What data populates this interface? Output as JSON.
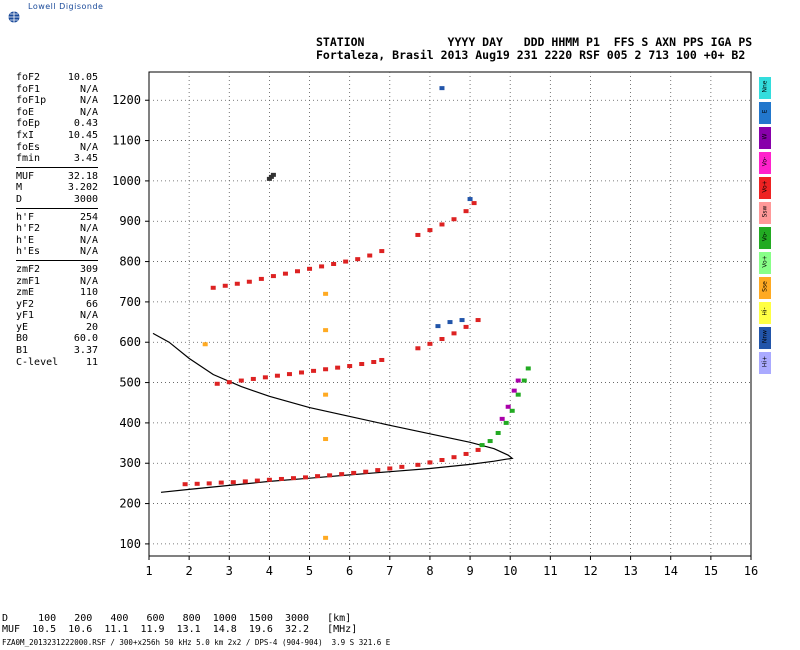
{
  "app": {
    "logo_text": "Lowell Digisonde"
  },
  "header": {
    "line1": "STATION            YYYY DAY   DDD HHMM P1  FFS S AXN PPS IGA PS",
    "line2": "Fortaleza, Brasil 2013 Aug19 231 2220 RSF 005 2 713 100 +0+ B2"
  },
  "params": {
    "group1": [
      {
        "k": "foF2",
        "v": "10.05"
      },
      {
        "k": "foF1",
        "v": "N/A"
      },
      {
        "k": "foF1p",
        "v": "N/A"
      },
      {
        "k": "foE",
        "v": "N/A"
      },
      {
        "k": "foEp",
        "v": "0.43"
      },
      {
        "k": "fxI",
        "v": "10.45"
      },
      {
        "k": "foEs",
        "v": "N/A"
      },
      {
        "k": "fmin",
        "v": "3.45"
      }
    ],
    "group2": [
      {
        "k": "MUF",
        "v": "32.18"
      },
      {
        "k": "M",
        "v": "3.202"
      },
      {
        "k": "D",
        "v": "3000"
      }
    ],
    "group3": [
      {
        "k": "h'F",
        "v": "254"
      },
      {
        "k": "h'F2",
        "v": "N/A"
      },
      {
        "k": "h'E",
        "v": "N/A"
      },
      {
        "k": "h'Es",
        "v": "N/A"
      }
    ],
    "group4": [
      {
        "k": "zmF2",
        "v": "309"
      },
      {
        "k": "zmF1",
        "v": "N/A"
      },
      {
        "k": "zmE",
        "v": "110"
      },
      {
        "k": "yF2",
        "v": "66"
      },
      {
        "k": "yF1",
        "v": "N/A"
      },
      {
        "k": "yE",
        "v": "20"
      },
      {
        "k": "B0",
        "v": "60.0"
      },
      {
        "k": "B1",
        "v": "3.37"
      },
      {
        "k": "C-level",
        "v": "11"
      }
    ]
  },
  "legend": [
    {
      "label": "Nne",
      "color": "#33dddd"
    },
    {
      "label": "E",
      "color": "#2277cc"
    },
    {
      "label": "W",
      "color": "#8800aa"
    },
    {
      "label": "Vo-",
      "color": "#ff22cc"
    },
    {
      "label": "Vo+",
      "color": "#ee2222"
    },
    {
      "label": "Ssw",
      "color": "#ff9999"
    },
    {
      "label": "Vo-",
      "color": "#22aa22"
    },
    {
      "label": "Vo+",
      "color": "#88ff88"
    },
    {
      "label": "Sse",
      "color": "#ffaa22"
    },
    {
      "label": "Hi-",
      "color": "#ffff44"
    },
    {
      "label": "Nnw",
      "color": "#2255aa"
    },
    {
      "label": "Hi+",
      "color": "#aaaaff"
    }
  ],
  "footer": {
    "line_d": "D     100   200   400   600   800  1000  1500  3000   [km]",
    "line_muf": "MUF  10.5  10.6  11.1  11.9  13.1  14.8  19.6  32.2   [MHz]",
    "filename": "FZA0M_2013231222000.RSF / 300+x256h 50 kHz 5.0 km 2x2 / DPS-4 (904-904)  3.9 S 321.6 E"
  },
  "chart_data": {
    "type": "scatter",
    "xlim": [
      1,
      16
    ],
    "ylim": [
      70,
      1270
    ],
    "x_ticks": [
      1,
      2,
      3,
      4,
      5,
      6,
      7,
      8,
      9,
      10,
      11,
      12,
      13,
      14,
      15,
      16
    ],
    "y_ticks": [
      100,
      200,
      300,
      400,
      500,
      600,
      700,
      800,
      900,
      1000,
      1100,
      1200
    ],
    "grid": "dotted",
    "series": [
      {
        "color": "#dd2222",
        "points": [
          [
            1.9,
            248
          ],
          [
            2.2,
            249
          ],
          [
            2.5,
            250
          ],
          [
            2.8,
            252
          ],
          [
            3.1,
            253
          ],
          [
            3.4,
            255
          ],
          [
            3.7,
            257
          ],
          [
            4.0,
            259
          ],
          [
            4.3,
            261
          ],
          [
            4.6,
            263
          ],
          [
            4.9,
            265
          ],
          [
            5.2,
            268
          ],
          [
            5.5,
            270
          ],
          [
            5.8,
            273
          ],
          [
            6.1,
            276
          ],
          [
            6.4,
            279
          ],
          [
            6.7,
            283
          ],
          [
            7.0,
            287
          ],
          [
            7.3,
            291
          ],
          [
            7.7,
            296
          ],
          [
            8.0,
            302
          ],
          [
            8.3,
            308
          ],
          [
            8.6,
            315
          ],
          [
            8.9,
            323
          ],
          [
            9.2,
            333
          ]
        ]
      },
      {
        "color": "#dd2222",
        "points": [
          [
            2.7,
            497
          ],
          [
            3.0,
            501
          ],
          [
            3.3,
            505
          ],
          [
            3.6,
            509
          ],
          [
            3.9,
            513
          ],
          [
            4.2,
            517
          ],
          [
            4.5,
            521
          ],
          [
            4.8,
            525
          ],
          [
            5.1,
            529
          ],
          [
            5.4,
            533
          ],
          [
            5.7,
            537
          ],
          [
            6.0,
            541
          ],
          [
            6.3,
            546
          ],
          [
            6.6,
            551
          ],
          [
            6.8,
            556
          ],
          [
            7.7,
            585
          ],
          [
            8.0,
            596
          ],
          [
            8.3,
            608
          ],
          [
            8.6,
            622
          ],
          [
            8.9,
            638
          ],
          [
            9.2,
            655
          ]
        ]
      },
      {
        "color": "#dd2222",
        "points": [
          [
            2.6,
            735
          ],
          [
            2.9,
            740
          ],
          [
            3.2,
            745
          ],
          [
            3.5,
            750
          ],
          [
            3.8,
            757
          ],
          [
            4.1,
            764
          ],
          [
            4.4,
            770
          ],
          [
            4.7,
            776
          ],
          [
            5.0,
            782
          ],
          [
            5.3,
            788
          ],
          [
            5.6,
            794
          ],
          [
            5.9,
            800
          ],
          [
            6.2,
            806
          ],
          [
            6.5,
            815
          ],
          [
            6.8,
            826
          ],
          [
            7.7,
            866
          ],
          [
            8.0,
            878
          ],
          [
            8.3,
            892
          ],
          [
            8.6,
            905
          ],
          [
            8.9,
            925
          ],
          [
            9.1,
            945
          ]
        ]
      },
      {
        "color": "#333333",
        "points": [
          [
            4.0,
            1005
          ],
          [
            4.05,
            1010
          ],
          [
            4.1,
            1015
          ]
        ]
      },
      {
        "color": "#22aa22",
        "points": [
          [
            9.3,
            345
          ],
          [
            9.5,
            355
          ],
          [
            9.7,
            375
          ],
          [
            9.9,
            400
          ],
          [
            10.05,
            430
          ],
          [
            10.2,
            470
          ],
          [
            10.35,
            505
          ],
          [
            10.45,
            535
          ]
        ]
      },
      {
        "color": "#aa00aa",
        "points": [
          [
            9.8,
            410
          ],
          [
            9.95,
            440
          ],
          [
            10.1,
            480
          ],
          [
            10.2,
            505
          ]
        ]
      },
      {
        "color": "#2255aa",
        "points": [
          [
            8.2,
            640
          ],
          [
            8.5,
            650
          ],
          [
            8.8,
            655
          ],
          [
            9.0,
            955
          ],
          [
            8.3,
            1230
          ]
        ]
      },
      {
        "color": "#ffaa22",
        "points": [
          [
            5.4,
            115
          ],
          [
            5.4,
            360
          ],
          [
            5.4,
            470
          ],
          [
            5.4,
            720
          ],
          [
            5.4,
            630
          ],
          [
            2.4,
            595
          ]
        ]
      }
    ],
    "profile": {
      "color": "#000000",
      "points": [
        [
          1.3,
          228
        ],
        [
          2.0,
          235
        ],
        [
          3.0,
          245
        ],
        [
          4.0,
          255
        ],
        [
          5.0,
          263
        ],
        [
          6.0,
          271
        ],
        [
          7.0,
          279
        ],
        [
          8.0,
          287
        ],
        [
          9.0,
          297
        ],
        [
          9.6,
          305
        ],
        [
          9.9,
          310
        ],
        [
          10.05,
          312
        ],
        [
          9.95,
          320
        ],
        [
          9.6,
          336
        ],
        [
          9.0,
          352
        ],
        [
          8.0,
          373
        ],
        [
          7.0,
          394
        ],
        [
          6.0,
          416
        ],
        [
          5.0,
          438
        ],
        [
          4.0,
          466
        ],
        [
          3.3,
          490
        ],
        [
          2.6,
          520
        ],
        [
          2.0,
          560
        ],
        [
          1.5,
          600
        ],
        [
          1.1,
          622
        ]
      ]
    }
  }
}
